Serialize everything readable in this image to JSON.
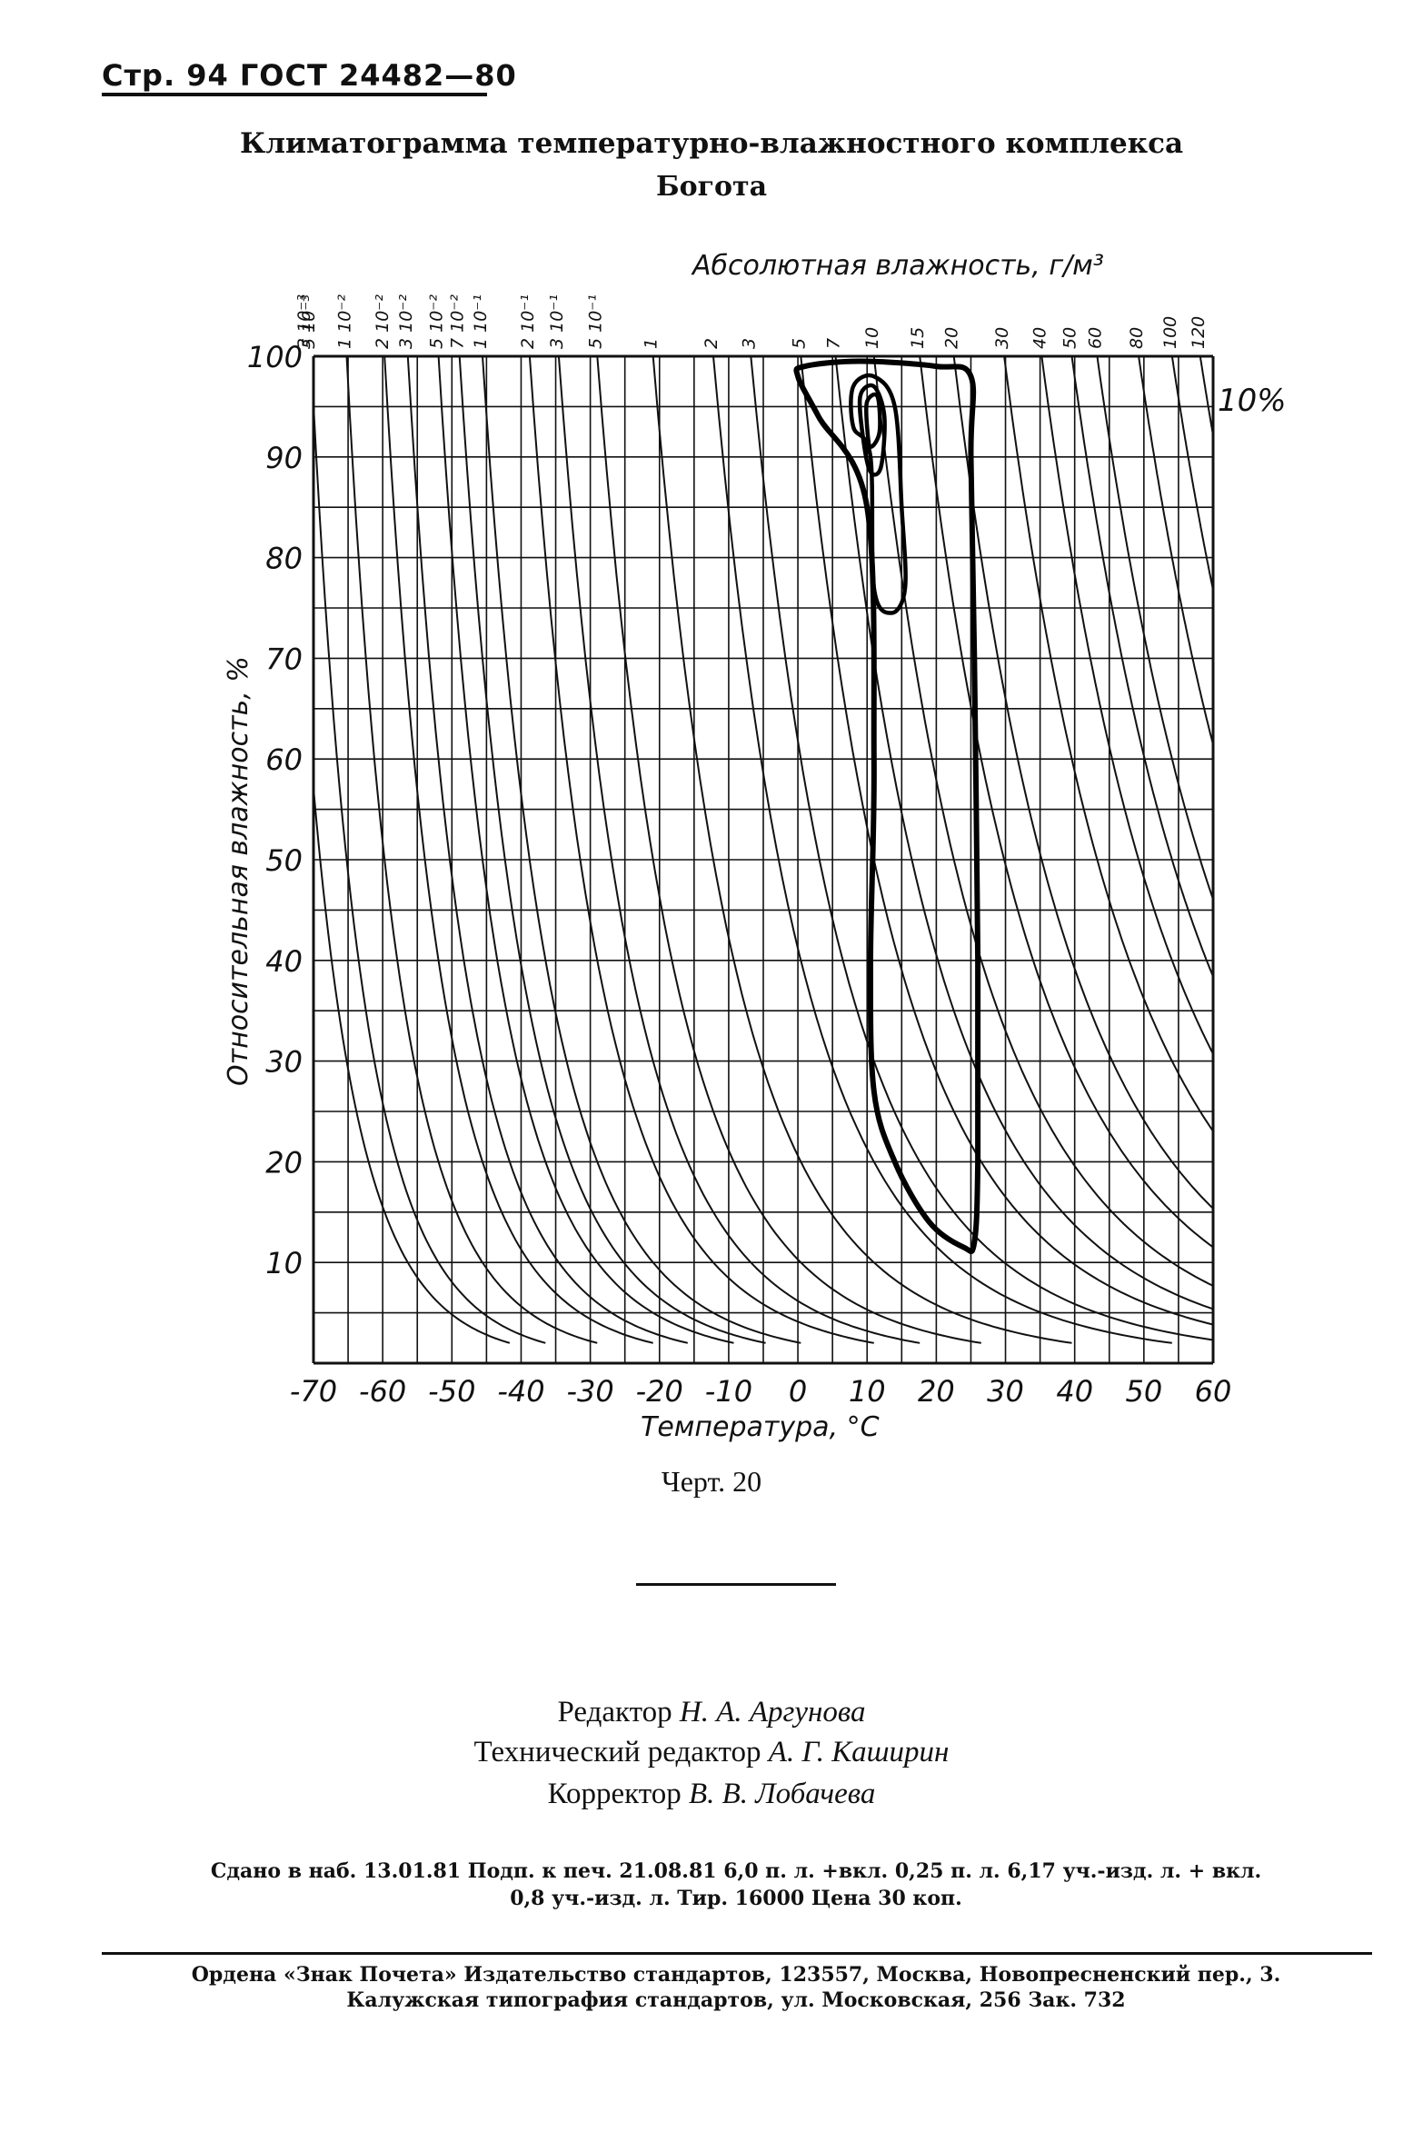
{
  "header": {
    "text": "Стр. 94 ГОСТ 24482—80"
  },
  "title": {
    "line1": "Климатограмма температурно-влажностного комплекса",
    "line2": "Богота"
  },
  "chart_data": {
    "type": "line",
    "top_axis_label": "Абсолютная влажность, г/м³",
    "xlabel": "Температура, °C",
    "ylabel": "Относительная влажность, %",
    "xlim": [
      -70,
      60
    ],
    "ylim": [
      0,
      100
    ],
    "x_ticks": [
      -70,
      -60,
      -50,
      -40,
      -30,
      -20,
      -10,
      0,
      10,
      20,
      30,
      40,
      50,
      60
    ],
    "y_ticks": [
      10,
      20,
      30,
      40,
      50,
      60,
      70,
      80,
      90,
      100
    ],
    "y_top_label": "100",
    "isoline_labels": [
      "3 10⁻³",
      "5 10⁻³",
      "1 10⁻²",
      "2 10⁻²",
      "3 10⁻²",
      "5 10⁻²",
      "7 10⁻²",
      "1 10⁻¹",
      "2 10⁻¹",
      "3 10⁻¹",
      "5 10⁻¹",
      "1",
      "2",
      "3",
      "5",
      "7",
      "10",
      "15",
      "20",
      "30",
      "40",
      "50",
      "60",
      "80",
      "100",
      "120"
    ],
    "isoline_values": [
      0.003,
      0.005,
      0.01,
      0.02,
      0.03,
      0.05,
      0.07,
      0.1,
      0.2,
      0.3,
      0.5,
      1,
      2,
      3,
      5,
      7,
      10,
      15,
      20,
      30,
      40,
      50,
      60,
      80,
      100,
      120
    ],
    "contour_annotation": "10%",
    "contours": [
      {
        "level": "10%",
        "points": [
          [
            1,
            99
          ],
          [
            9,
            99.5
          ],
          [
            20,
            99
          ],
          [
            25,
            98
          ],
          [
            25,
            90
          ],
          [
            25.5,
            70
          ],
          [
            26,
            40
          ],
          [
            26,
            20
          ],
          [
            25.5,
            12
          ],
          [
            24,
            11.5
          ],
          [
            19,
            14
          ],
          [
            14,
            20
          ],
          [
            11,
            27
          ],
          [
            10.5,
            40
          ],
          [
            11,
            60
          ],
          [
            10,
            85
          ],
          [
            3,
            94
          ],
          [
            0,
            98
          ]
        ]
      },
      {
        "level": "inner",
        "points": [
          [
            8,
            97
          ],
          [
            11,
            98
          ],
          [
            14,
            95
          ],
          [
            15,
            85
          ],
          [
            15.5,
            77
          ],
          [
            13.5,
            74.5
          ],
          [
            11,
            77
          ],
          [
            10.5,
            90
          ],
          [
            8,
            93
          ]
        ]
      },
      {
        "level": "inner",
        "points": [
          [
            9,
            96
          ],
          [
            11,
            97
          ],
          [
            12.5,
            94
          ],
          [
            12,
            89
          ],
          [
            10.5,
            88.5
          ],
          [
            9.5,
            91.5
          ]
        ]
      },
      {
        "level": "inner",
        "points": [
          [
            10,
            95.5
          ],
          [
            11.5,
            96
          ],
          [
            11.8,
            92.5
          ],
          [
            10.5,
            91
          ],
          [
            10,
            93
          ]
        ]
      }
    ],
    "grid": true
  },
  "figure_caption": "Черт. 20",
  "credits": [
    {
      "role": "Редактор",
      "name": "Н. А. Аргунова"
    },
    {
      "role": "Технический редактор",
      "name": "А. Г. Каширин"
    },
    {
      "role": "Корректор",
      "name": "В. В. Лобачева"
    }
  ],
  "imprint": {
    "line1": "Сдано в наб. 13.01.81 Подп. к печ. 21.08.81 6,0 п. л. +вкл. 0,25 п. л. 6,17 уч.-изд. л. + вкл.",
    "line2": "0,8 уч.-изд. л. Тир. 16000 Цена 30 коп.",
    "line3": "Ордена «Знак Почета» Издательство стандартов, 123557, Москва, Новопресненский пер., 3.",
    "line4": "Калужская типография стандартов, ул. Московская, 256 Зак. 732"
  }
}
